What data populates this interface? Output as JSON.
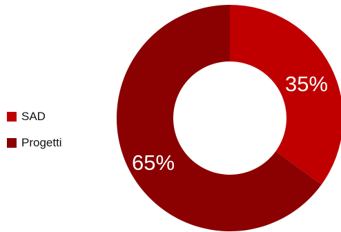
{
  "chart_data": {
    "type": "pie",
    "donut": true,
    "categories": [
      "SAD",
      "Progetti"
    ],
    "values": [
      35,
      65
    ],
    "labels": [
      "35%",
      "65%"
    ],
    "colors": [
      "#C00000",
      "#8B0000"
    ],
    "legend_position": "left"
  }
}
